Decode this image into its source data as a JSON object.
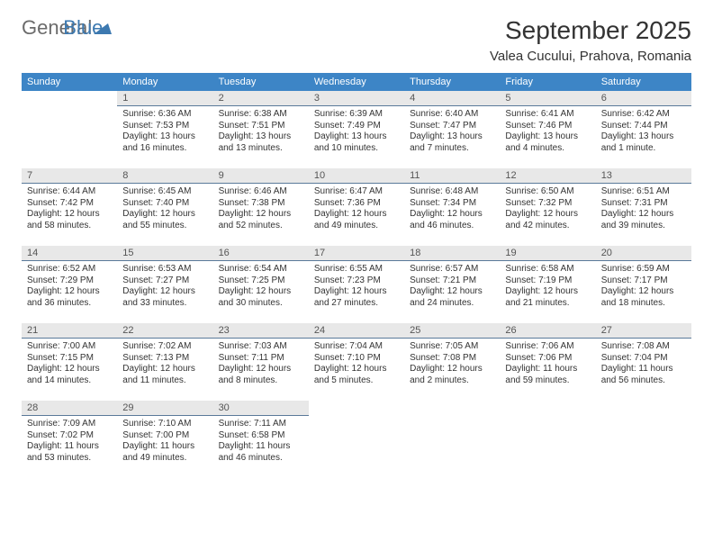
{
  "brand": {
    "part1": "General",
    "part2": "Blue"
  },
  "header": {
    "title": "September 2025",
    "subtitle": "Valea Cucului, Prahova, Romania"
  },
  "weekdays": [
    "Sunday",
    "Monday",
    "Tuesday",
    "Wednesday",
    "Thursday",
    "Friday",
    "Saturday"
  ],
  "colors": {
    "header_bg": "#3d85c6",
    "daynum_bg": "#e8e8e8",
    "rule": "#5a7a9a"
  },
  "grid": [
    [
      null,
      {
        "n": "1",
        "sr": "Sunrise: 6:36 AM",
        "ss": "Sunset: 7:53 PM",
        "dl": "Daylight: 13 hours and 16 minutes."
      },
      {
        "n": "2",
        "sr": "Sunrise: 6:38 AM",
        "ss": "Sunset: 7:51 PM",
        "dl": "Daylight: 13 hours and 13 minutes."
      },
      {
        "n": "3",
        "sr": "Sunrise: 6:39 AM",
        "ss": "Sunset: 7:49 PM",
        "dl": "Daylight: 13 hours and 10 minutes."
      },
      {
        "n": "4",
        "sr": "Sunrise: 6:40 AM",
        "ss": "Sunset: 7:47 PM",
        "dl": "Daylight: 13 hours and 7 minutes."
      },
      {
        "n": "5",
        "sr": "Sunrise: 6:41 AM",
        "ss": "Sunset: 7:46 PM",
        "dl": "Daylight: 13 hours and 4 minutes."
      },
      {
        "n": "6",
        "sr": "Sunrise: 6:42 AM",
        "ss": "Sunset: 7:44 PM",
        "dl": "Daylight: 13 hours and 1 minute."
      }
    ],
    [
      {
        "n": "7",
        "sr": "Sunrise: 6:44 AM",
        "ss": "Sunset: 7:42 PM",
        "dl": "Daylight: 12 hours and 58 minutes."
      },
      {
        "n": "8",
        "sr": "Sunrise: 6:45 AM",
        "ss": "Sunset: 7:40 PM",
        "dl": "Daylight: 12 hours and 55 minutes."
      },
      {
        "n": "9",
        "sr": "Sunrise: 6:46 AM",
        "ss": "Sunset: 7:38 PM",
        "dl": "Daylight: 12 hours and 52 minutes."
      },
      {
        "n": "10",
        "sr": "Sunrise: 6:47 AM",
        "ss": "Sunset: 7:36 PM",
        "dl": "Daylight: 12 hours and 49 minutes."
      },
      {
        "n": "11",
        "sr": "Sunrise: 6:48 AM",
        "ss": "Sunset: 7:34 PM",
        "dl": "Daylight: 12 hours and 46 minutes."
      },
      {
        "n": "12",
        "sr": "Sunrise: 6:50 AM",
        "ss": "Sunset: 7:32 PM",
        "dl": "Daylight: 12 hours and 42 minutes."
      },
      {
        "n": "13",
        "sr": "Sunrise: 6:51 AM",
        "ss": "Sunset: 7:31 PM",
        "dl": "Daylight: 12 hours and 39 minutes."
      }
    ],
    [
      {
        "n": "14",
        "sr": "Sunrise: 6:52 AM",
        "ss": "Sunset: 7:29 PM",
        "dl": "Daylight: 12 hours and 36 minutes."
      },
      {
        "n": "15",
        "sr": "Sunrise: 6:53 AM",
        "ss": "Sunset: 7:27 PM",
        "dl": "Daylight: 12 hours and 33 minutes."
      },
      {
        "n": "16",
        "sr": "Sunrise: 6:54 AM",
        "ss": "Sunset: 7:25 PM",
        "dl": "Daylight: 12 hours and 30 minutes."
      },
      {
        "n": "17",
        "sr": "Sunrise: 6:55 AM",
        "ss": "Sunset: 7:23 PM",
        "dl": "Daylight: 12 hours and 27 minutes."
      },
      {
        "n": "18",
        "sr": "Sunrise: 6:57 AM",
        "ss": "Sunset: 7:21 PM",
        "dl": "Daylight: 12 hours and 24 minutes."
      },
      {
        "n": "19",
        "sr": "Sunrise: 6:58 AM",
        "ss": "Sunset: 7:19 PM",
        "dl": "Daylight: 12 hours and 21 minutes."
      },
      {
        "n": "20",
        "sr": "Sunrise: 6:59 AM",
        "ss": "Sunset: 7:17 PM",
        "dl": "Daylight: 12 hours and 18 minutes."
      }
    ],
    [
      {
        "n": "21",
        "sr": "Sunrise: 7:00 AM",
        "ss": "Sunset: 7:15 PM",
        "dl": "Daylight: 12 hours and 14 minutes."
      },
      {
        "n": "22",
        "sr": "Sunrise: 7:02 AM",
        "ss": "Sunset: 7:13 PM",
        "dl": "Daylight: 12 hours and 11 minutes."
      },
      {
        "n": "23",
        "sr": "Sunrise: 7:03 AM",
        "ss": "Sunset: 7:11 PM",
        "dl": "Daylight: 12 hours and 8 minutes."
      },
      {
        "n": "24",
        "sr": "Sunrise: 7:04 AM",
        "ss": "Sunset: 7:10 PM",
        "dl": "Daylight: 12 hours and 5 minutes."
      },
      {
        "n": "25",
        "sr": "Sunrise: 7:05 AM",
        "ss": "Sunset: 7:08 PM",
        "dl": "Daylight: 12 hours and 2 minutes."
      },
      {
        "n": "26",
        "sr": "Sunrise: 7:06 AM",
        "ss": "Sunset: 7:06 PM",
        "dl": "Daylight: 11 hours and 59 minutes."
      },
      {
        "n": "27",
        "sr": "Sunrise: 7:08 AM",
        "ss": "Sunset: 7:04 PM",
        "dl": "Daylight: 11 hours and 56 minutes."
      }
    ],
    [
      {
        "n": "28",
        "sr": "Sunrise: 7:09 AM",
        "ss": "Sunset: 7:02 PM",
        "dl": "Daylight: 11 hours and 53 minutes."
      },
      {
        "n": "29",
        "sr": "Sunrise: 7:10 AM",
        "ss": "Sunset: 7:00 PM",
        "dl": "Daylight: 11 hours and 49 minutes."
      },
      {
        "n": "30",
        "sr": "Sunrise: 7:11 AM",
        "ss": "Sunset: 6:58 PM",
        "dl": "Daylight: 11 hours and 46 minutes."
      },
      null,
      null,
      null,
      null
    ]
  ]
}
